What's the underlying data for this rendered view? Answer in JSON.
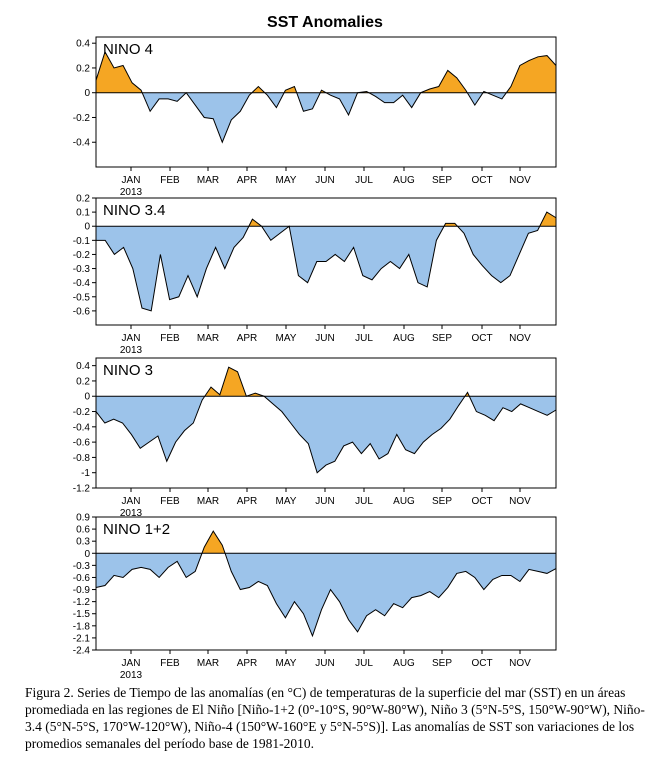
{
  "title": "SST Anomalies",
  "caption": "Figura 2. Series de Tiempo de las anomalías (en °C) de temperaturas de la superficie del mar (SST) en un áreas promediada en las regiones de El Niño [Niño-1+2 (0°-10°S, 90°W-80°W), Niño 3 (5°N-5°S, 150°W-90°W), Niño-3.4 (5°N-5°S, 170°W-120°W), Niño-4 (150°W-160°E y 5°N-5°S)]. Las anomalías de SST son variaciones de los promedios semanales del período base de 1981-2010.",
  "colors": {
    "positive": "#f5a623",
    "negative": "#9cc3ea",
    "line": "#000000"
  },
  "month_labels": [
    "JAN",
    "FEB",
    "MAR",
    "APR",
    "MAY",
    "JUN",
    "JUL",
    "AUG",
    "SEP",
    "OCT",
    "NOV"
  ],
  "year_label": "2013",
  "chart_data": [
    {
      "type": "area",
      "name": "NINO 4",
      "x_unit": "week",
      "xlim": [
        0,
        47
      ],
      "ylim": [
        -0.6,
        0.45
      ],
      "yticks": [
        0.4,
        0.2,
        0,
        -0.2,
        -0.4
      ],
      "ytick_labels": [
        "0.4",
        "0.2",
        "0",
        "-0.2",
        "-0.4"
      ],
      "values": [
        0.1,
        0.33,
        0.2,
        0.22,
        0.08,
        0.02,
        -0.15,
        -0.05,
        -0.05,
        -0.07,
        0.0,
        -0.1,
        -0.2,
        -0.21,
        -0.4,
        -0.22,
        -0.15,
        -0.02,
        0.05,
        -0.02,
        -0.12,
        0.02,
        0.05,
        -0.15,
        -0.13,
        0.02,
        -0.02,
        -0.05,
        -0.18,
        0.0,
        0.01,
        -0.03,
        -0.08,
        -0.08,
        -0.02,
        -0.12,
        0.0,
        0.03,
        0.05,
        0.18,
        0.12,
        0.02,
        -0.1,
        0.01,
        -0.02,
        -0.05,
        0.05,
        0.22,
        0.26,
        0.29,
        0.3,
        0.22
      ]
    },
    {
      "type": "area",
      "name": "NINO 3.4",
      "x_unit": "week",
      "xlim": [
        0,
        47
      ],
      "ylim": [
        -0.7,
        0.2
      ],
      "yticks": [
        0.2,
        0.1,
        0,
        -0.1,
        -0.2,
        -0.3,
        -0.4,
        -0.5,
        -0.6
      ],
      "ytick_labels": [
        "0.2",
        "0.1",
        "0",
        "-0.1",
        "-0.2",
        "-0.3",
        "-0.4",
        "-0.5",
        "-0.6"
      ],
      "values": [
        -0.1,
        -0.1,
        -0.2,
        -0.15,
        -0.3,
        -0.58,
        -0.6,
        -0.2,
        -0.52,
        -0.5,
        -0.35,
        -0.5,
        -0.3,
        -0.15,
        -0.3,
        -0.15,
        -0.08,
        0.05,
        0.0,
        -0.1,
        -0.05,
        0.0,
        -0.35,
        -0.4,
        -0.25,
        -0.25,
        -0.2,
        -0.25,
        -0.15,
        -0.35,
        -0.38,
        -0.3,
        -0.25,
        -0.3,
        -0.2,
        -0.4,
        -0.43,
        -0.1,
        0.02,
        0.02,
        -0.05,
        -0.2,
        -0.28,
        -0.35,
        -0.4,
        -0.35,
        -0.2,
        -0.05,
        -0.03,
        0.1,
        0.06
      ]
    },
    {
      "type": "area",
      "name": "NINO 3",
      "x_unit": "week",
      "xlim": [
        0,
        47
      ],
      "ylim": [
        -1.2,
        0.5
      ],
      "yticks": [
        0.4,
        0.2,
        0,
        -0.2,
        -0.4,
        -0.6,
        -0.8,
        -1,
        -1.2
      ],
      "ytick_labels": [
        "0.4",
        "0.2",
        "0",
        "-0.2",
        "-0.4",
        "-0.6",
        "-0.8",
        "-1",
        "-1.2"
      ],
      "values": [
        -0.2,
        -0.35,
        -0.3,
        -0.35,
        -0.5,
        -0.68,
        -0.6,
        -0.52,
        -0.85,
        -0.6,
        -0.45,
        -0.35,
        -0.05,
        0.12,
        0.02,
        0.38,
        0.32,
        0.0,
        0.04,
        0.0,
        -0.1,
        -0.2,
        -0.35,
        -0.5,
        -0.62,
        -1.0,
        -0.9,
        -0.85,
        -0.65,
        -0.6,
        -0.75,
        -0.62,
        -0.82,
        -0.75,
        -0.5,
        -0.7,
        -0.75,
        -0.6,
        -0.5,
        -0.42,
        -0.3,
        -0.12,
        0.05,
        -0.2,
        -0.25,
        -0.32,
        -0.15,
        -0.2,
        -0.1,
        -0.15,
        -0.2,
        -0.25,
        -0.18
      ]
    },
    {
      "type": "area",
      "name": "NINO 1+2",
      "x_unit": "week",
      "xlim": [
        0,
        47
      ],
      "ylim": [
        -2.4,
        0.9
      ],
      "yticks": [
        0.9,
        0.6,
        0.3,
        0,
        -0.3,
        -0.6,
        -0.9,
        -1.2,
        -1.5,
        -1.8,
        -2.1,
        -2.4
      ],
      "ytick_labels": [
        "0.9",
        "0.6",
        "0.3",
        "0",
        "-0.3",
        "-0.6",
        "-0.9",
        "-1.2",
        "-1.5",
        "-1.8",
        "-2.1",
        "-2.4"
      ],
      "values": [
        -0.85,
        -0.8,
        -0.55,
        -0.6,
        -0.4,
        -0.35,
        -0.4,
        -0.6,
        -0.35,
        -0.2,
        -0.6,
        -0.45,
        0.15,
        0.55,
        0.2,
        -0.45,
        -0.9,
        -0.85,
        -0.7,
        -0.8,
        -1.25,
        -1.6,
        -1.2,
        -1.5,
        -2.05,
        -1.4,
        -0.9,
        -1.2,
        -1.65,
        -1.95,
        -1.55,
        -1.4,
        -1.55,
        -1.25,
        -1.35,
        -1.1,
        -1.05,
        -0.95,
        -1.1,
        -0.85,
        -0.5,
        -0.45,
        -0.6,
        -0.9,
        -0.65,
        -0.55,
        -0.55,
        -0.7,
        -0.4,
        -0.45,
        -0.5,
        -0.38
      ]
    }
  ]
}
